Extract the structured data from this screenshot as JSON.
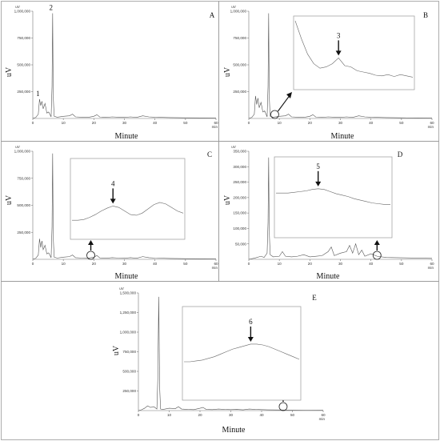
{
  "chart_data": [
    {
      "panel": "A",
      "type": "line",
      "ylabel": "uV",
      "xlabel": "Minute",
      "y_unit": "uV",
      "x_unit": "min",
      "xlim": [
        0,
        60
      ],
      "ylim": [
        0,
        1000000
      ],
      "xticks": [
        "0",
        "10",
        "20",
        "30",
        "40",
        "50",
        "60"
      ],
      "yticks": [
        "250,000",
        "500,000",
        "750,000",
        "1,000,000"
      ],
      "ytick_values": [
        250000,
        500000,
        750000,
        1000000
      ],
      "series": [
        {
          "x": [
            0,
            1,
            1.8,
            2.2,
            2.6,
            3.0,
            3.4,
            4.0,
            4.6,
            5.2,
            6.0,
            6.3,
            6.5,
            6.7,
            7.0,
            8,
            10,
            12,
            13,
            14,
            16,
            18,
            20,
            21,
            22,
            24,
            26,
            28,
            30,
            32,
            34,
            36,
            38,
            40,
            45,
            50,
            55,
            60
          ],
          "y": [
            0,
            10000,
            40000,
            180000,
            120000,
            160000,
            90000,
            140000,
            50000,
            60000,
            15000,
            300000,
            980000,
            200000,
            20000,
            12000,
            20000,
            25000,
            40000,
            15000,
            12000,
            10000,
            20000,
            35000,
            12000,
            10000,
            15000,
            12000,
            10000,
            15000,
            10000,
            25000,
            15000,
            12000,
            8000,
            6000,
            5000,
            4000
          ]
        }
      ],
      "annotations": [
        {
          "label": "1",
          "x": 2.2,
          "y": 180000
        },
        {
          "label": "2",
          "x": 6.5,
          "y": 980000
        }
      ]
    },
    {
      "panel": "B",
      "type": "line",
      "ylabel": "uV",
      "xlabel": "Minute",
      "y_unit": "uV",
      "x_unit": "min",
      "xlim": [
        0,
        60
      ],
      "ylim": [
        0,
        1000000
      ],
      "xticks": [
        "0",
        "10",
        "20",
        "30",
        "40",
        "50",
        "60"
      ],
      "yticks": [
        "250,000",
        "500,000",
        "750,000",
        "1,000,000"
      ],
      "ytick_values": [
        250000,
        500000,
        750000,
        1000000
      ],
      "series": [
        {
          "x": [
            0,
            1,
            1.8,
            2.2,
            2.6,
            3.0,
            3.4,
            4.0,
            4.6,
            5.2,
            6.0,
            6.3,
            6.5,
            6.7,
            7.0,
            8,
            10,
            12,
            13,
            14,
            16,
            18,
            20,
            21,
            22,
            24,
            26,
            28,
            30,
            32,
            34,
            36,
            38,
            40,
            45,
            50,
            55,
            60
          ],
          "y": [
            0,
            10000,
            40000,
            210000,
            130000,
            190000,
            100000,
            150000,
            60000,
            70000,
            15000,
            300000,
            980000,
            200000,
            20000,
            12000,
            20000,
            25000,
            40000,
            15000,
            12000,
            10000,
            20000,
            35000,
            12000,
            10000,
            15000,
            12000,
            10000,
            15000,
            10000,
            25000,
            15000,
            12000,
            8000,
            6000,
            5000,
            4000
          ]
        }
      ],
      "marker": {
        "x": 8.5
      },
      "inset": {
        "label": "3",
        "peak_index": 7,
        "y": [
          1.0,
          0.72,
          0.48,
          0.33,
          0.26,
          0.28,
          0.33,
          0.42,
          0.3,
          0.28,
          0.22,
          0.2,
          0.18,
          0.15,
          0.14,
          0.16,
          0.13,
          0.16,
          0.14,
          0.12
        ]
      }
    },
    {
      "panel": "C",
      "type": "line",
      "ylabel": "uV",
      "xlabel": "Minute",
      "y_unit": "uV",
      "x_unit": "min",
      "xlim": [
        0,
        60
      ],
      "ylim": [
        0,
        1000000
      ],
      "xticks": [
        "0",
        "10",
        "20",
        "30",
        "40",
        "50",
        "60"
      ],
      "yticks": [
        "250,000",
        "500,000",
        "750,000",
        "1,000,000"
      ],
      "ytick_values": [
        250000,
        500000,
        750000,
        1000000
      ],
      "series": [
        {
          "x": [
            0,
            1,
            1.8,
            2.2,
            2.6,
            3.0,
            3.4,
            4.0,
            4.6,
            5.2,
            6.0,
            6.3,
            6.5,
            6.7,
            7.0,
            8,
            10,
            12,
            13,
            14,
            16,
            18,
            20,
            21,
            22,
            24,
            26,
            28,
            30,
            32,
            34,
            36,
            38,
            40,
            45,
            50,
            55,
            60
          ],
          "y": [
            0,
            10000,
            40000,
            190000,
            110000,
            170000,
            90000,
            130000,
            50000,
            60000,
            15000,
            300000,
            980000,
            200000,
            20000,
            12000,
            20000,
            25000,
            40000,
            15000,
            12000,
            10000,
            20000,
            35000,
            12000,
            10000,
            15000,
            12000,
            10000,
            15000,
            10000,
            25000,
            15000,
            12000,
            8000,
            6000,
            5000,
            4000
          ]
        }
      ],
      "marker": {
        "x": 19
      },
      "inset": {
        "label": "4",
        "peak_index": 7,
        "y": [
          0.2,
          0.2,
          0.21,
          0.24,
          0.28,
          0.33,
          0.37,
          0.4,
          0.38,
          0.33,
          0.28,
          0.27,
          0.3,
          0.36,
          0.42,
          0.45,
          0.43,
          0.38,
          0.33,
          0.3
        ]
      }
    },
    {
      "panel": "D",
      "type": "line",
      "ylabel": "uV",
      "xlabel": "Minute",
      "y_unit": "uV",
      "x_unit": "min",
      "xlim": [
        0,
        60
      ],
      "ylim": [
        0,
        350000
      ],
      "xticks": [
        "0",
        "10",
        "20",
        "30",
        "40",
        "50",
        "60"
      ],
      "yticks": [
        "50,000",
        "100,000",
        "150,000",
        "200,000",
        "250,000",
        "300,000",
        "350,000"
      ],
      "ytick_values": [
        50000,
        100000,
        150000,
        200000,
        250000,
        300000,
        350000
      ],
      "series": [
        {
          "x": [
            0,
            2,
            4,
            5,
            6,
            6.3,
            6.5,
            6.7,
            7,
            8,
            10,
            11,
            12,
            14,
            16,
            18,
            20,
            22,
            24,
            26,
            27,
            28,
            30,
            32,
            33,
            34,
            35,
            36,
            37,
            38,
            40,
            42,
            45,
            50,
            55,
            60
          ],
          "y": [
            0,
            4000,
            10000,
            6000,
            20000,
            120000,
            330000,
            90000,
            15000,
            8000,
            10000,
            25000,
            10000,
            8000,
            10000,
            15000,
            8000,
            10000,
            12000,
            25000,
            40000,
            12000,
            20000,
            25000,
            45000,
            20000,
            50000,
            15000,
            30000,
            10000,
            18000,
            10000,
            6000,
            5000,
            4000,
            3000
          ]
        }
      ],
      "marker": {
        "x": 42
      },
      "inset": {
        "label": "5",
        "peak_index": 7,
        "y": [
          0.56,
          0.56,
          0.56,
          0.57,
          0.58,
          0.59,
          0.61,
          0.62,
          0.61,
          0.58,
          0.55,
          0.53,
          0.51,
          0.48,
          0.46,
          0.44,
          0.42,
          0.41,
          0.4,
          0.4
        ]
      }
    },
    {
      "panel": "E",
      "type": "line",
      "ylabel": "uV",
      "xlabel": "Minute",
      "y_unit": "uV",
      "x_unit": "min",
      "xlim": [
        0,
        60
      ],
      "ylim": [
        0,
        1500000
      ],
      "xticks": [
        "0",
        "10",
        "20",
        "30",
        "40",
        "50",
        "60"
      ],
      "yticks": [
        "250,000",
        "500,000",
        "750,000",
        "1,000,000",
        "1,250,000",
        "1,500,000"
      ],
      "ytick_values": [
        250000,
        500000,
        750000,
        1000000,
        1250000,
        1500000
      ],
      "series": [
        {
          "x": [
            0,
            1,
            2,
            3,
            4,
            5,
            6,
            6.3,
            6.6,
            6.9,
            7.2,
            8,
            10,
            12,
            13,
            14,
            16,
            18,
            20,
            21,
            22,
            24,
            26,
            28,
            30,
            32,
            34,
            36,
            38,
            40,
            42,
            45,
            50,
            55,
            60
          ],
          "y": [
            0,
            10000,
            30000,
            60000,
            40000,
            50000,
            20000,
            400000,
            1450000,
            300000,
            20000,
            15000,
            30000,
            25000,
            50000,
            20000,
            15000,
            12000,
            30000,
            40000,
            15000,
            12000,
            20000,
            15000,
            12000,
            15000,
            10000,
            20000,
            15000,
            12000,
            10000,
            8000,
            6000,
            5000,
            4000
          ]
        }
      ],
      "marker": {
        "x": 47
      },
      "inset": {
        "label": "6",
        "peak_index": 11,
        "y": [
          0.4,
          0.4,
          0.41,
          0.42,
          0.44,
          0.46,
          0.49,
          0.52,
          0.55,
          0.57,
          0.59,
          0.61,
          0.61,
          0.6,
          0.58,
          0.55,
          0.52,
          0.49,
          0.46,
          0.43
        ]
      }
    }
  ]
}
